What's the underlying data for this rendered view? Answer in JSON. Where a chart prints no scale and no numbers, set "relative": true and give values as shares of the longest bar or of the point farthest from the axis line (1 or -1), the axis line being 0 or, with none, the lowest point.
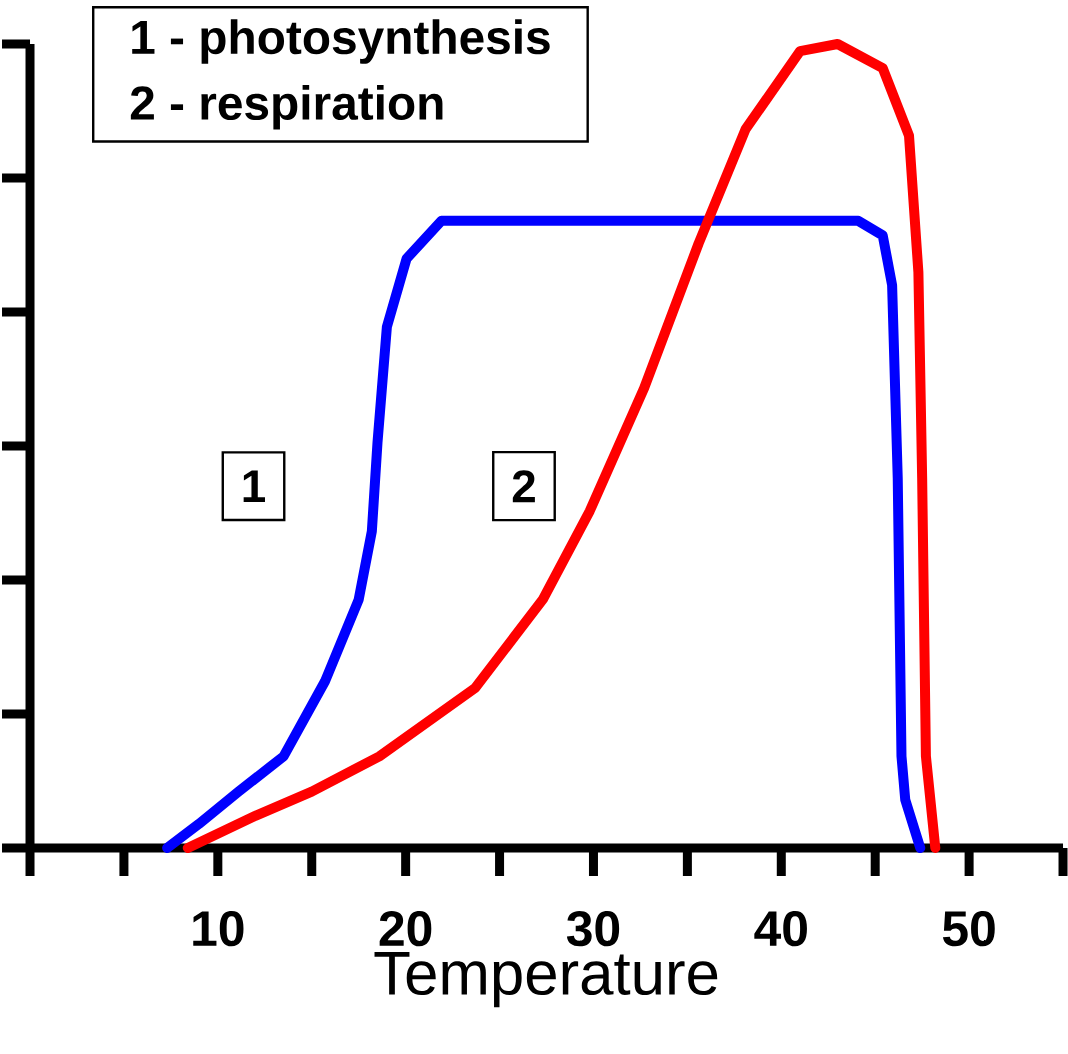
{
  "chart_data": {
    "type": "line",
    "relative": true,
    "xlabel": "Temperature",
    "xlim": [
      0,
      55
    ],
    "xticks": [
      {
        "value": 0,
        "label": null
      },
      {
        "value": 5,
        "label": null
      },
      10,
      {
        "value": 15,
        "label": null
      },
      20,
      {
        "value": 25,
        "label": null
      },
      30,
      {
        "value": 35,
        "label": null
      },
      40,
      {
        "value": 45,
        "label": null
      },
      50,
      {
        "value": 55,
        "label": null
      }
    ],
    "tick_labels": "x",
    "grid": false,
    "marker": "none",
    "line_style": "solid",
    "series": [
      {
        "color": "#0000ff",
        "x": [
          7.3,
          9.0,
          11.1,
          13.5,
          15.7,
          17.5,
          18.2,
          18.5,
          19.0,
          20.05,
          21.9,
          44.1,
          45.4,
          45.9,
          46.2,
          46.4,
          46.6,
          47.4
        ],
        "values": [
          0,
          0.03,
          0.07,
          0.114,
          0.207,
          0.309,
          0.394,
          0.504,
          0.648,
          0.733,
          0.78,
          0.78,
          0.762,
          0.7,
          0.46,
          0.114,
          0.06,
          0
        ]
      },
      {
        "color": "#ff0000",
        "x": [
          8.4,
          12,
          15,
          18.6,
          23.7,
          27.3,
          29.8,
          32.7,
          35.6,
          38.1,
          41.0,
          43.0,
          45.4,
          46.8,
          47.3,
          47.5,
          47.7,
          48.2
        ],
        "values": [
          0,
          0.04,
          0.07,
          0.114,
          0.199,
          0.309,
          0.419,
          0.572,
          0.752,
          0.894,
          0.991,
          1.0,
          0.97,
          0.886,
          0.716,
          0.46,
          0.114,
          0
        ]
      }
    ],
    "annotations": [
      "1 - photosynthesis",
      "2 - respiration",
      {
        "text": "1",
        "x": 11.9,
        "y": 0.45
      },
      {
        "text": "2",
        "x": 26.3,
        "y": 0.45
      }
    ]
  }
}
